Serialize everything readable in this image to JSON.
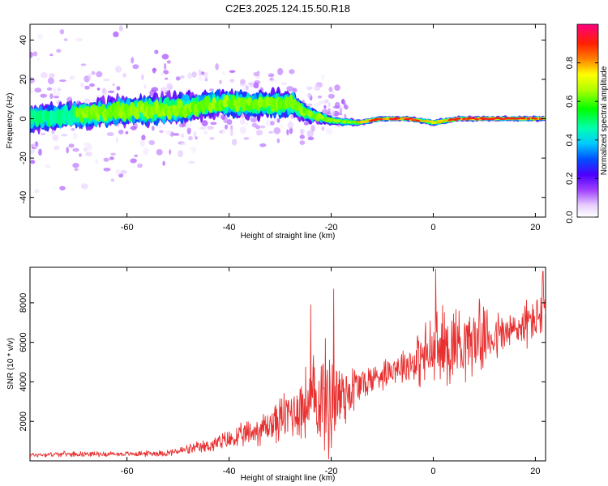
{
  "figure": {
    "title": "C2E3.2025.124.15.50.R18",
    "colors": {
      "snr_line": "#e83030",
      "axes": "#000000"
    }
  },
  "chart_data": [
    {
      "type": "heatmap",
      "xlabel": "Height of straight line (km)",
      "ylabel": "Frequency (Hz)",
      "xlim": [
        -79,
        22
      ],
      "ylim": [
        -50,
        48
      ],
      "xticks": [
        -60,
        -40,
        -20,
        0,
        20
      ],
      "yticks": [
        -40,
        -20,
        0,
        20,
        40
      ],
      "colorbar": {
        "label": "Normalized spectral amplitude",
        "range": [
          0,
          1
        ],
        "ticks": [
          0.0,
          0.2,
          0.4,
          0.6,
          0.8
        ],
        "colormap": "rainbow (white-violet-blue-cyan-green-yellow-red-magenta)"
      },
      "ridge": [
        {
          "x": -79,
          "y": 0,
          "amp": 0.5,
          "spread": 6
        },
        {
          "x": -70,
          "y": 2,
          "amp": 0.55,
          "spread": 6
        },
        {
          "x": -60,
          "y": 4,
          "amp": 0.55,
          "spread": 7
        },
        {
          "x": -50,
          "y": 5,
          "amp": 0.55,
          "spread": 7
        },
        {
          "x": -42,
          "y": 8,
          "amp": 0.6,
          "spread": 6
        },
        {
          "x": -35,
          "y": 7,
          "amp": 0.6,
          "spread": 6
        },
        {
          "x": -28,
          "y": 8,
          "amp": 0.55,
          "spread": 6
        },
        {
          "x": -25,
          "y": 3,
          "amp": 0.55,
          "spread": 4
        },
        {
          "x": -20,
          "y": -1,
          "amp": 0.6,
          "spread": 2
        },
        {
          "x": -15,
          "y": -2,
          "amp": 0.75,
          "spread": 1.5
        },
        {
          "x": -10,
          "y": 0,
          "amp": 0.9,
          "spread": 1.2
        },
        {
          "x": -5,
          "y": 0,
          "amp": 0.85,
          "spread": 1.2
        },
        {
          "x": 0,
          "y": -2,
          "amp": 0.8,
          "spread": 1.5
        },
        {
          "x": 5,
          "y": 0,
          "amp": 0.85,
          "spread": 1.2
        },
        {
          "x": 10,
          "y": 0,
          "amp": 0.9,
          "spread": 1.2
        },
        {
          "x": 15,
          "y": 0,
          "amp": 0.85,
          "spread": 1.2
        },
        {
          "x": 22,
          "y": 0,
          "amp": 0.85,
          "spread": 1.2
        }
      ]
    },
    {
      "type": "line",
      "xlabel": "Height of straight line (km)",
      "ylabel": "SNR (10 * v/v)",
      "xlim": [
        -79,
        22
      ],
      "ylim": [
        0,
        9800
      ],
      "xticks": [
        -60,
        -40,
        -20,
        0,
        20
      ],
      "yticks": [
        2000,
        4000,
        6000,
        8000
      ],
      "series": [
        {
          "envelope": [
            {
              "x": -79,
              "mean": 300,
              "amp": 150
            },
            {
              "x": -72,
              "mean": 350,
              "amp": 150
            },
            {
              "x": -60,
              "mean": 350,
              "amp": 150
            },
            {
              "x": -52,
              "mean": 400,
              "amp": 200
            },
            {
              "x": -45,
              "mean": 700,
              "amp": 400
            },
            {
              "x": -38,
              "mean": 1200,
              "amp": 700
            },
            {
              "x": -32,
              "mean": 1800,
              "amp": 1100
            },
            {
              "x": -27,
              "mean": 2600,
              "amp": 1800
            },
            {
              "x": -22,
              "mean": 3200,
              "amp": 3200
            },
            {
              "x": -20,
              "mean": 3000,
              "amp": 3500
            },
            {
              "x": -17,
              "mean": 3500,
              "amp": 2000
            },
            {
              "x": -13,
              "mean": 4000,
              "amp": 1000
            },
            {
              "x": -8,
              "mean": 4700,
              "amp": 900
            },
            {
              "x": -4,
              "mean": 5000,
              "amp": 1300
            },
            {
              "x": 0,
              "mean": 5500,
              "amp": 2500
            },
            {
              "x": 4,
              "mean": 6000,
              "amp": 2500
            },
            {
              "x": 10,
              "mean": 6200,
              "amp": 1800
            },
            {
              "x": 15,
              "mean": 6500,
              "amp": 1300
            },
            {
              "x": 20,
              "mean": 7200,
              "amp": 1500
            },
            {
              "x": 22,
              "mean": 7800,
              "amp": 1800
            }
          ],
          "peaks": [
            {
              "x": -19.5,
              "y": 8700
            },
            {
              "x": -24,
              "y": 7900
            },
            {
              "x": 0.5,
              "y": 9700
            },
            {
              "x": 9,
              "y": 8200
            },
            {
              "x": 21.5,
              "y": 9600
            },
            {
              "x": -20.5,
              "y": 100
            }
          ]
        }
      ]
    }
  ]
}
